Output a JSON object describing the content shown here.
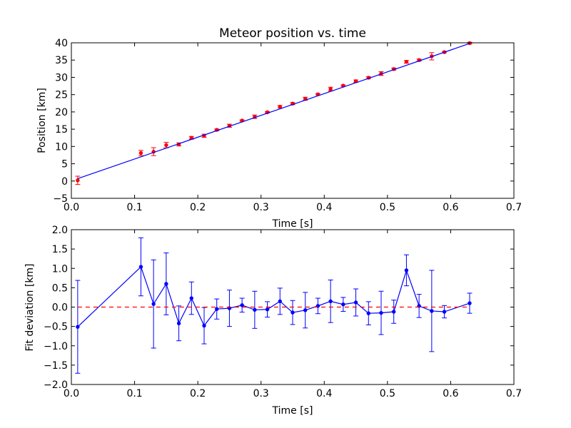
{
  "chart_data": [
    {
      "type": "scatter",
      "title": "Meteor position vs. time",
      "xlabel": "Time [s]",
      "ylabel": "Position [km]",
      "xlim": [
        0.0,
        0.7
      ],
      "ylim": [
        -5,
        40
      ],
      "xticks": [
        "0.0",
        "0.1",
        "0.2",
        "0.3",
        "0.4",
        "0.5",
        "0.6",
        "0.7"
      ],
      "yticks": [
        "−5",
        "0",
        "5",
        "10",
        "15",
        "20",
        "25",
        "30",
        "35",
        "40"
      ],
      "grid": false,
      "series": [
        {
          "kind": "errorbar-points",
          "color": "#ff0000",
          "x": [
            0.01,
            0.11,
            0.13,
            0.15,
            0.17,
            0.19,
            0.21,
            0.23,
            0.25,
            0.27,
            0.29,
            0.31,
            0.33,
            0.35,
            0.37,
            0.39,
            0.41,
            0.43,
            0.45,
            0.47,
            0.49,
            0.51,
            0.53,
            0.55,
            0.57,
            0.59,
            0.63
          ],
          "y": [
            0.2,
            8.1,
            8.5,
            10.4,
            10.6,
            12.5,
            13.1,
            14.8,
            16.0,
            17.5,
            18.6,
            19.9,
            21.5,
            22.4,
            23.8,
            25.1,
            26.6,
            27.6,
            28.9,
            29.9,
            31.1,
            32.4,
            34.5,
            35.0,
            36.1,
            37.3,
            39.9
          ],
          "yerr": [
            1.2,
            0.75,
            1.15,
            0.8,
            0.45,
            0.4,
            0.45,
            0.25,
            0.45,
            0.2,
            0.5,
            0.2,
            0.35,
            0.3,
            0.45,
            0.2,
            0.55,
            0.2,
            0.35,
            0.3,
            0.55,
            0.3,
            0.4,
            0.3,
            1.05,
            0.2,
            0.25
          ]
        },
        {
          "kind": "fit-line",
          "color": "#0000ff",
          "x": [
            0.01,
            0.63
          ],
          "y": [
            0.7,
            39.8
          ]
        }
      ]
    },
    {
      "type": "line",
      "title": "",
      "xlabel": "Time [s]",
      "ylabel": "Fit deviation [km]",
      "xlim": [
        0.0,
        0.7
      ],
      "ylim": [
        -2.0,
        2.0
      ],
      "xticks": [
        "0.0",
        "0.1",
        "0.2",
        "0.3",
        "0.4",
        "0.5",
        "0.6",
        "0.7"
      ],
      "yticks": [
        "−2.0",
        "−1.5",
        "−1.0",
        "−0.5",
        "0.0",
        "0.5",
        "1.0",
        "1.5",
        "2.0"
      ],
      "grid": false,
      "series": [
        {
          "kind": "errorbar-line",
          "color": "#0000ff",
          "x": [
            0.01,
            0.11,
            0.13,
            0.15,
            0.17,
            0.19,
            0.21,
            0.23,
            0.25,
            0.27,
            0.29,
            0.31,
            0.33,
            0.35,
            0.37,
            0.39,
            0.41,
            0.43,
            0.45,
            0.47,
            0.49,
            0.51,
            0.53,
            0.55,
            0.57,
            0.59,
            0.63
          ],
          "y": [
            -0.51,
            1.04,
            0.08,
            0.6,
            -0.42,
            0.23,
            -0.48,
            -0.05,
            -0.03,
            0.05,
            -0.07,
            -0.06,
            0.15,
            -0.14,
            -0.08,
            0.03,
            0.15,
            0.07,
            0.12,
            -0.16,
            -0.15,
            -0.12,
            0.95,
            0.03,
            -0.1,
            -0.12,
            0.1
          ],
          "yerr": [
            1.2,
            0.75,
            1.14,
            0.8,
            0.45,
            0.42,
            0.47,
            0.26,
            0.47,
            0.18,
            0.48,
            0.2,
            0.34,
            0.31,
            0.46,
            0.2,
            0.55,
            0.18,
            0.35,
            0.3,
            0.56,
            0.3,
            0.4,
            0.3,
            1.05,
            0.16,
            0.26
          ]
        },
        {
          "kind": "reference-line",
          "color": "#ff0000",
          "style": "dashed",
          "y": 0.0,
          "x": [
            0.01,
            0.63
          ]
        }
      ]
    }
  ]
}
